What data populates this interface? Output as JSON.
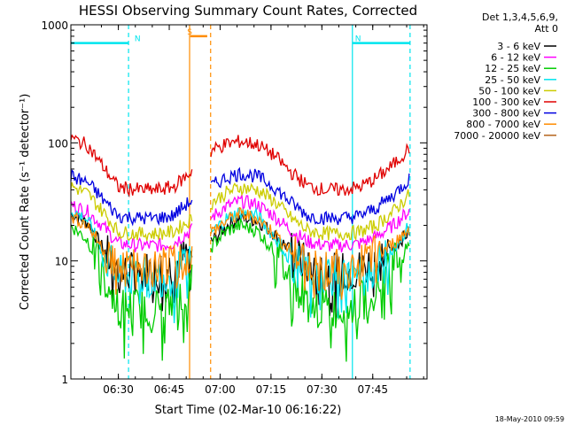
{
  "colors": {
    "background": "#ffffff",
    "axis": "#000000",
    "attenuator_n": "#00e5ee",
    "attenuator_s": "#ff8c00"
  },
  "chart_data": {
    "type": "line",
    "title": "HESSI Observing Summary Count Rates, Corrected",
    "xlabel": "Start Time (02-Mar-10 06:16:22)",
    "ylabel": "Corrected Count Rate (s⁻¹ detector⁻¹)",
    "ylog": true,
    "xlim_minutes_after_0616": [
      0,
      105
    ],
    "ylim": [
      1,
      1000
    ],
    "x_tick_labels": [
      "06:30",
      "06:45",
      "07:00",
      "07:15",
      "07:30",
      "07:45"
    ],
    "x_tick_minutes": [
      14,
      29,
      44,
      59,
      74,
      89
    ],
    "y_tick_labels": [
      "1",
      "10",
      "100",
      "1000"
    ],
    "y_tick_values": [
      1,
      10,
      100,
      1000
    ],
    "legend_header": [
      "Det 1,3,4,5,6,9,",
      "Att 0"
    ],
    "legend_position": "right",
    "data_gap": [
      36,
      41
    ],
    "saa_gap_minutes": [
      34.8,
      41.2
    ],
    "annotations": [
      {
        "text": "N",
        "color": "#00e5ee",
        "x_min": 18,
        "y": 700,
        "bar_x": [
          0,
          17
        ],
        "vline": 17,
        "vline_style": "dashed"
      },
      {
        "text": "N",
        "color": "#00e5ee",
        "x_min": 83,
        "y": 700,
        "bar_x": [
          83,
          100
        ],
        "vline": 83,
        "vline_style": "solid"
      },
      {
        "text": "",
        "color": "#00e5ee",
        "vline": 100,
        "vline_style": "dashed"
      },
      {
        "text": "S",
        "color": "#ff8c00",
        "x_min": 33.5,
        "y": 800,
        "bar_x": [
          35.2,
          40.2
        ],
        "vline": 35,
        "vline_style": "solid"
      },
      {
        "text": "",
        "color": "#ff8c00",
        "vline": 41.2,
        "vline_style": "dashed"
      }
    ],
    "series": [
      {
        "name": "3 - 6 keV",
        "color": "#000000",
        "points": [
          [
            0,
            25
          ],
          [
            5,
            21
          ],
          [
            10,
            12
          ],
          [
            14,
            8
          ],
          [
            20,
            8
          ],
          [
            25,
            8.5
          ],
          [
            30,
            9
          ],
          [
            34,
            11
          ],
          [
            42,
            15
          ],
          [
            46,
            20
          ],
          [
            50,
            23
          ],
          [
            55,
            22
          ],
          [
            60,
            17
          ],
          [
            65,
            12
          ],
          [
            70,
            9
          ],
          [
            75,
            8
          ],
          [
            80,
            8
          ],
          [
            85,
            8.5
          ],
          [
            90,
            10
          ],
          [
            95,
            13
          ],
          [
            100,
            18
          ]
        ]
      },
      {
        "name": "6 - 12 keV",
        "color": "#ff00ff",
        "points": [
          [
            0,
            30
          ],
          [
            5,
            26
          ],
          [
            10,
            19
          ],
          [
            14,
            14
          ],
          [
            20,
            13.5
          ],
          [
            25,
            13.5
          ],
          [
            30,
            14
          ],
          [
            34,
            17
          ],
          [
            42,
            24
          ],
          [
            46,
            29
          ],
          [
            50,
            32
          ],
          [
            55,
            30
          ],
          [
            60,
            24
          ],
          [
            65,
            18
          ],
          [
            70,
            14.5
          ],
          [
            75,
            13.5
          ],
          [
            80,
            13.5
          ],
          [
            85,
            14
          ],
          [
            90,
            16
          ],
          [
            95,
            20
          ],
          [
            100,
            27
          ]
        ]
      },
      {
        "name": "12 - 25 keV",
        "color": "#00cc00",
        "points": [
          [
            0,
            20
          ],
          [
            5,
            15
          ],
          [
            10,
            7
          ],
          [
            14,
            4.2
          ],
          [
            20,
            4
          ],
          [
            25,
            4
          ],
          [
            30,
            4.3
          ],
          [
            34,
            5.5
          ],
          [
            42,
            14
          ],
          [
            46,
            18
          ],
          [
            50,
            20
          ],
          [
            55,
            18
          ],
          [
            60,
            12
          ],
          [
            65,
            7
          ],
          [
            70,
            4.5
          ],
          [
            75,
            4
          ],
          [
            80,
            4
          ],
          [
            85,
            4.3
          ],
          [
            90,
            6
          ],
          [
            95,
            9
          ],
          [
            100,
            14
          ]
        ]
      },
      {
        "name": "25 - 50 keV",
        "color": "#00e5ee",
        "points": [
          [
            0,
            27
          ],
          [
            5,
            22
          ],
          [
            10,
            11
          ],
          [
            14,
            7.5
          ],
          [
            20,
            7.3
          ],
          [
            25,
            7.3
          ],
          [
            30,
            7.6
          ],
          [
            34,
            9
          ],
          [
            42,
            18
          ],
          [
            46,
            23
          ],
          [
            50,
            26
          ],
          [
            55,
            24
          ],
          [
            60,
            16
          ],
          [
            65,
            10
          ],
          [
            70,
            7.6
          ],
          [
            75,
            7.3
          ],
          [
            80,
            7.3
          ],
          [
            85,
            7.5
          ],
          [
            90,
            9
          ],
          [
            95,
            13
          ],
          [
            100,
            20
          ]
        ]
      },
      {
        "name": "50 - 100 keV",
        "color": "#cccc00",
        "points": [
          [
            0,
            43
          ],
          [
            5,
            37
          ],
          [
            10,
            25
          ],
          [
            14,
            17.5
          ],
          [
            20,
            17
          ],
          [
            25,
            17
          ],
          [
            30,
            17.5
          ],
          [
            34,
            21
          ],
          [
            42,
            32
          ],
          [
            46,
            38
          ],
          [
            50,
            42
          ],
          [
            55,
            40
          ],
          [
            60,
            32
          ],
          [
            65,
            23
          ],
          [
            70,
            18
          ],
          [
            75,
            17
          ],
          [
            80,
            17
          ],
          [
            85,
            17.5
          ],
          [
            90,
            20
          ],
          [
            95,
            26
          ],
          [
            100,
            37
          ]
        ]
      },
      {
        "name": "100 - 300 keV",
        "color": "#e00000",
        "points": [
          [
            0,
            110
          ],
          [
            5,
            95
          ],
          [
            10,
            60
          ],
          [
            14,
            42
          ],
          [
            20,
            40
          ],
          [
            25,
            40
          ],
          [
            30,
            42
          ],
          [
            34,
            52
          ],
          [
            42,
            88
          ],
          [
            46,
            98
          ],
          [
            50,
            103
          ],
          [
            55,
            97
          ],
          [
            60,
            78
          ],
          [
            65,
            56
          ],
          [
            70,
            43
          ],
          [
            75,
            40
          ],
          [
            80,
            40
          ],
          [
            85,
            42
          ],
          [
            90,
            50
          ],
          [
            95,
            65
          ],
          [
            100,
            92
          ]
        ]
      },
      {
        "name": "300 - 800 keV",
        "color": "#0000e0",
        "points": [
          [
            0,
            52
          ],
          [
            5,
            46
          ],
          [
            10,
            32
          ],
          [
            14,
            24
          ],
          [
            20,
            23
          ],
          [
            25,
            23
          ],
          [
            30,
            24
          ],
          [
            34,
            30
          ],
          [
            42,
            44
          ],
          [
            46,
            51
          ],
          [
            50,
            55
          ],
          [
            55,
            52
          ],
          [
            60,
            42
          ],
          [
            65,
            31
          ],
          [
            70,
            24
          ],
          [
            75,
            23
          ],
          [
            80,
            23
          ],
          [
            85,
            24
          ],
          [
            90,
            28
          ],
          [
            95,
            36
          ],
          [
            100,
            50
          ]
        ]
      },
      {
        "name": "800 - 7000 keV",
        "color": "#ff8c00",
        "points": [
          [
            0,
            24
          ],
          [
            5,
            20
          ],
          [
            10,
            12
          ],
          [
            14,
            8.7
          ],
          [
            20,
            8.5
          ],
          [
            25,
            8.5
          ],
          [
            30,
            9
          ],
          [
            34,
            11
          ],
          [
            42,
            18
          ],
          [
            46,
            22
          ],
          [
            50,
            25
          ],
          [
            55,
            23
          ],
          [
            60,
            17
          ],
          [
            65,
            12
          ],
          [
            70,
            9
          ],
          [
            75,
            8.5
          ],
          [
            80,
            8.5
          ],
          [
            85,
            9
          ],
          [
            90,
            11
          ],
          [
            95,
            14
          ],
          [
            100,
            19
          ]
        ]
      },
      {
        "name": "7000 - 20000 keV",
        "color": "#b5651d",
        "points": []
      }
    ]
  },
  "footer": {
    "timestamp": "18-May-2010 09:59"
  }
}
